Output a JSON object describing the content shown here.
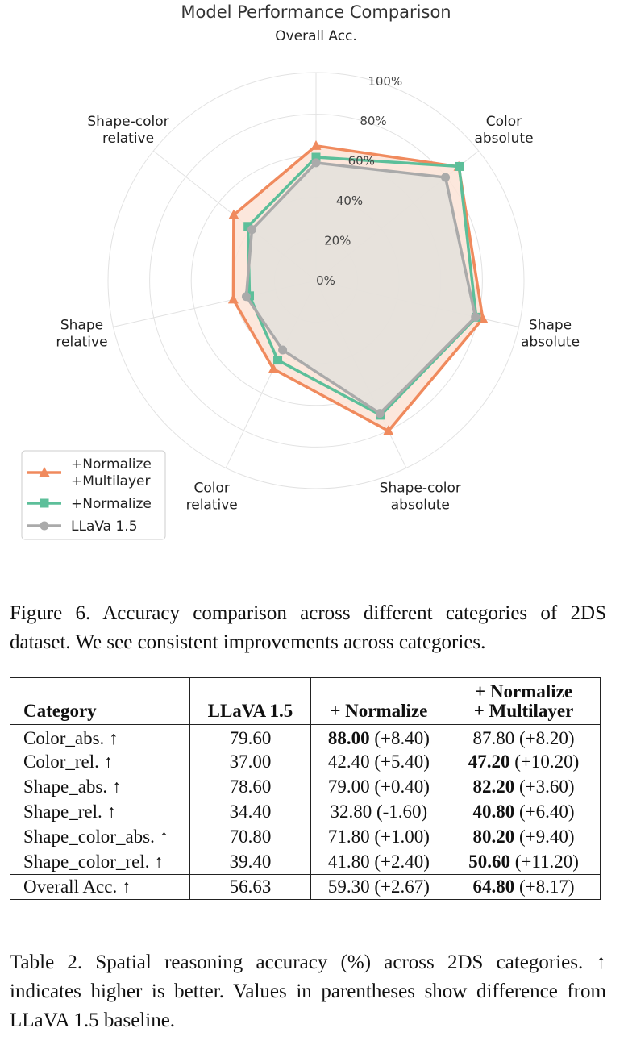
{
  "chart_data": {
    "type": "radar",
    "title": "Model Performance Comparison",
    "axes": [
      {
        "line1": "Overall Acc.",
        "line2": ""
      },
      {
        "line1": "Color",
        "line2": "absolute"
      },
      {
        "line1": "Shape",
        "line2": "absolute"
      },
      {
        "line1": "Shape-color",
        "line2": "absolute"
      },
      {
        "line1": "Color",
        "line2": "relative"
      },
      {
        "line1": "Shape",
        "line2": "relative"
      },
      {
        "line1": "Shape-color",
        "line2": "relative"
      }
    ],
    "radial_ticks": [
      "0%",
      "20%",
      "40%",
      "60%",
      "80%",
      "100%"
    ],
    "rlim": [
      0,
      100
    ],
    "series": [
      {
        "name": "+Normalize\n+Multilayer",
        "marker": "triangle",
        "color": "#f08a5d",
        "fill": "#fbe3d6",
        "values": [
          64.8,
          87.8,
          82.2,
          80.2,
          47.2,
          40.8,
          50.6
        ]
      },
      {
        "name": "+Normalize",
        "marker": "square",
        "color": "#5dbf9a",
        "fill": "none",
        "values": [
          59.3,
          88.0,
          79.0,
          71.8,
          42.4,
          32.8,
          41.8
        ]
      },
      {
        "name": "LLaVa 1.5",
        "marker": "circle",
        "color": "#aaaaaa",
        "fill": "#e3e1dc",
        "values": [
          56.63,
          79.6,
          78.6,
          70.8,
          37.0,
          34.4,
          39.4
        ]
      }
    ],
    "legend_position": "bottom-left",
    "grid": true
  },
  "figure_caption": "Figure 6. Accuracy comparison across different categories of 2DS dataset. We see consistent improvements across categories.",
  "table": {
    "headers": {
      "category": "Category",
      "llava": "LLaVA 1.5",
      "normalize": "+ Normalize",
      "multilayer_line1": "+ Normalize",
      "multilayer_line2": "+ Multilayer"
    },
    "rows": [
      {
        "category": "Color_abs. ↑",
        "llava": "79.60",
        "norm_val": "88.00",
        "norm_diff": "(+8.40)",
        "norm_bold": true,
        "multi_val": "87.80",
        "multi_diff": "(+8.20)",
        "multi_bold": false
      },
      {
        "category": "Color_rel. ↑",
        "llava": "37.00",
        "norm_val": "42.40",
        "norm_diff": "(+5.40)",
        "norm_bold": false,
        "multi_val": "47.20",
        "multi_diff": "(+10.20)",
        "multi_bold": true
      },
      {
        "category": "Shape_abs. ↑",
        "llava": "78.60",
        "norm_val": "79.00",
        "norm_diff": "(+0.40)",
        "norm_bold": false,
        "multi_val": "82.20",
        "multi_diff": "(+3.60)",
        "multi_bold": true
      },
      {
        "category": "Shape_rel. ↑",
        "llava": "34.40",
        "norm_val": "32.80",
        "norm_diff": "(-1.60)",
        "norm_bold": false,
        "multi_val": "40.80",
        "multi_diff": "(+6.40)",
        "multi_bold": true
      },
      {
        "category": "Shape_color_abs. ↑",
        "llava": "70.80",
        "norm_val": "71.80",
        "norm_diff": "(+1.00)",
        "norm_bold": false,
        "multi_val": "80.20",
        "multi_diff": "(+9.40)",
        "multi_bold": true
      },
      {
        "category": "Shape_color_rel. ↑",
        "llava": "39.40",
        "norm_val": "41.80",
        "norm_diff": "(+2.40)",
        "norm_bold": false,
        "multi_val": "50.60",
        "multi_diff": "(+11.20)",
        "multi_bold": true
      }
    ],
    "overall": {
      "category": "Overall Acc. ↑",
      "llava": "56.63",
      "norm_val": "59.30",
      "norm_diff": "(+2.67)",
      "norm_bold": false,
      "multi_val": "64.80",
      "multi_diff": "(+8.17)",
      "multi_bold": true
    }
  },
  "table_caption": "Table 2. Spatial reasoning accuracy (%) across 2DS categories. ↑ indicates higher is better. Values in parentheses show difference from LLaVA 1.5 baseline."
}
